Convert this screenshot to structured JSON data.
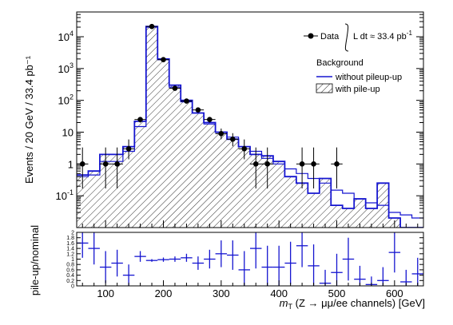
{
  "chart_data": [
    {
      "type": "bar",
      "panel": "main",
      "scale": "log",
      "ylabel": "Events / 20 GeV / 33.4 pb⁻¹",
      "xlim": [
        50,
        650
      ],
      "ylim": [
        0.01,
        60000
      ],
      "y_tick_labels": [
        {
          "value": 0.1,
          "base": "10",
          "exp": "-1"
        },
        {
          "value": 1,
          "base": "1",
          "exp": ""
        },
        {
          "value": 10,
          "base": "10",
          "exp": ""
        },
        {
          "value": 100,
          "base": "10",
          "exp": "2"
        },
        {
          "value": 1000,
          "base": "10",
          "exp": "3"
        },
        {
          "value": 10000,
          "base": "10",
          "exp": "4"
        }
      ],
      "bin_edges": [
        50,
        70,
        90,
        110,
        130,
        150,
        170,
        190,
        210,
        230,
        250,
        270,
        290,
        310,
        330,
        350,
        370,
        390,
        410,
        430,
        450,
        470,
        490,
        510,
        530,
        550,
        570,
        590,
        610,
        630,
        650
      ],
      "series": [
        {
          "name": "without pileup-up",
          "style": "blue-line",
          "values": [
            0.4,
            0.45,
            1.2,
            1.2,
            2.5,
            15,
            20000,
            1900,
            260,
            90,
            40,
            18,
            10,
            7,
            3.5,
            2.5,
            1.5,
            1.0,
            0.7,
            0.5,
            0.35,
            0.25,
            0.15,
            0.12,
            0.08,
            0.06,
            0.05,
            0.03,
            0.025,
            0.02
          ]
        },
        {
          "name": "with pile-up",
          "style": "blue-step-hatched",
          "values": [
            0.45,
            0.6,
            2.0,
            2.0,
            3.5,
            22,
            21000,
            2000,
            300,
            100,
            40,
            20,
            10,
            6,
            3.5,
            2.0,
            1.8,
            1.2,
            0.4,
            0.25,
            0.12,
            0.35,
            0.05,
            0.04,
            0.08,
            0.04,
            0.25,
            0.02,
            0.01,
            0.01
          ]
        },
        {
          "name": "Data",
          "style": "points",
          "points": [
            {
              "x": 60,
              "y": 1,
              "err_lo": 0.83,
              "err_hi": 2.3
            },
            {
              "x": 100,
              "y": 1,
              "err_lo": 0.83,
              "err_hi": 2.3
            },
            {
              "x": 120,
              "y": 1,
              "err_lo": 0.83,
              "err_hi": 2.3
            },
            {
              "x": 140,
              "y": 3,
              "err_lo": 1.6,
              "err_hi": 2.9
            },
            {
              "x": 160,
              "y": 25,
              "err_lo": 5,
              "err_hi": 5
            },
            {
              "x": 180,
              "y": 21000,
              "err_lo": 145,
              "err_hi": 145
            },
            {
              "x": 200,
              "y": 1900,
              "err_lo": 44,
              "err_hi": 44
            },
            {
              "x": 220,
              "y": 240,
              "err_lo": 15,
              "err_hi": 16
            },
            {
              "x": 240,
              "y": 95,
              "err_lo": 10,
              "err_hi": 10
            },
            {
              "x": 260,
              "y": 50,
              "err_lo": 7,
              "err_hi": 7
            },
            {
              "x": 280,
              "y": 25,
              "err_lo": 5,
              "err_hi": 5
            },
            {
              "x": 300,
              "y": 9,
              "err_lo": 3,
              "err_hi": 4
            },
            {
              "x": 320,
              "y": 6,
              "err_lo": 2.4,
              "err_hi": 3.3
            },
            {
              "x": 340,
              "y": 3,
              "err_lo": 1.6,
              "err_hi": 2.9
            },
            {
              "x": 360,
              "y": 1,
              "err_lo": 0.83,
              "err_hi": 2.3
            },
            {
              "x": 380,
              "y": 1,
              "err_lo": 0.83,
              "err_hi": 2.3
            },
            {
              "x": 440,
              "y": 1,
              "err_lo": 0.83,
              "err_hi": 2.3
            },
            {
              "x": 460,
              "y": 1,
              "err_lo": 0.83,
              "err_hi": 2.3
            },
            {
              "x": 500,
              "y": 1,
              "err_lo": 0.83,
              "err_hi": 2.3
            }
          ]
        }
      ],
      "legend": {
        "placement": "top-right",
        "data_label": "Data",
        "lumi_label": "L dt ≈ 33.4 pb",
        "lumi_sup": "-1",
        "background_title": "Background",
        "line_label": "without pileup-up",
        "hatched_label": "with pile-up"
      }
    },
    {
      "type": "scatter",
      "panel": "ratio",
      "ylabel": "pile-up/nominal",
      "xlabel": "m_T (Z → μμ/ee channels) [GeV]",
      "xlabel_parts": {
        "m": "m",
        "sub": "T",
        "rest": " (Z → μμ/ee channels) [GeV]"
      },
      "xlim": [
        50,
        650
      ],
      "ylim": [
        0,
        2
      ],
      "x_tick_labels": [
        "100",
        "200",
        "300",
        "400",
        "500",
        "600"
      ],
      "y_tick_labels": [
        "0",
        "0.2",
        "0.4",
        "0.6",
        "0.8",
        "1",
        "1.2",
        "1.4",
        "1.6",
        "1.8",
        "2"
      ],
      "points": [
        {
          "x": 60,
          "y": 1.6,
          "err": 0.55
        },
        {
          "x": 80,
          "y": 1.4,
          "err": 0.6
        },
        {
          "x": 100,
          "y": 0.7,
          "err": 0.6
        },
        {
          "x": 120,
          "y": 0.85,
          "err": 0.5
        },
        {
          "x": 140,
          "y": 0.4,
          "err": 0.4
        },
        {
          "x": 160,
          "y": 1.1,
          "err": 0.2
        },
        {
          "x": 180,
          "y": 0.95,
          "err": 0.05
        },
        {
          "x": 200,
          "y": 0.98,
          "err": 0.08
        },
        {
          "x": 220,
          "y": 1.0,
          "err": 0.1
        },
        {
          "x": 240,
          "y": 1.05,
          "err": 0.15
        },
        {
          "x": 260,
          "y": 0.85,
          "err": 0.25
        },
        {
          "x": 280,
          "y": 1.0,
          "err": 0.35
        },
        {
          "x": 300,
          "y": 1.2,
          "err": 0.5
        },
        {
          "x": 320,
          "y": 1.15,
          "err": 0.55
        },
        {
          "x": 340,
          "y": 0.6,
          "err": 0.7
        },
        {
          "x": 360,
          "y": 1.4,
          "err": 0.75
        },
        {
          "x": 380,
          "y": 0.7,
          "err": 0.8
        },
        {
          "x": 400,
          "y": 0.7,
          "err": 0.8
        },
        {
          "x": 420,
          "y": 0.85,
          "err": 0.8
        },
        {
          "x": 440,
          "y": 1.5,
          "err": 0.8
        },
        {
          "x": 460,
          "y": 0.75,
          "err": 0.8
        },
        {
          "x": 480,
          "y": 0.1,
          "err": 0.5
        },
        {
          "x": 500,
          "y": 0.5,
          "err": 0.7
        },
        {
          "x": 520,
          "y": 1.0,
          "err": 0.8
        },
        {
          "x": 540,
          "y": 0.25,
          "err": 0.5
        },
        {
          "x": 560,
          "y": 0.05,
          "err": 0.3
        },
        {
          "x": 580,
          "y": 0.2,
          "err": 0.5
        },
        {
          "x": 600,
          "y": 1.25,
          "err": 0.75
        },
        {
          "x": 620,
          "y": 0.15,
          "err": 0.45
        },
        {
          "x": 640,
          "y": 0.45,
          "err": 0.6
        }
      ]
    }
  ]
}
